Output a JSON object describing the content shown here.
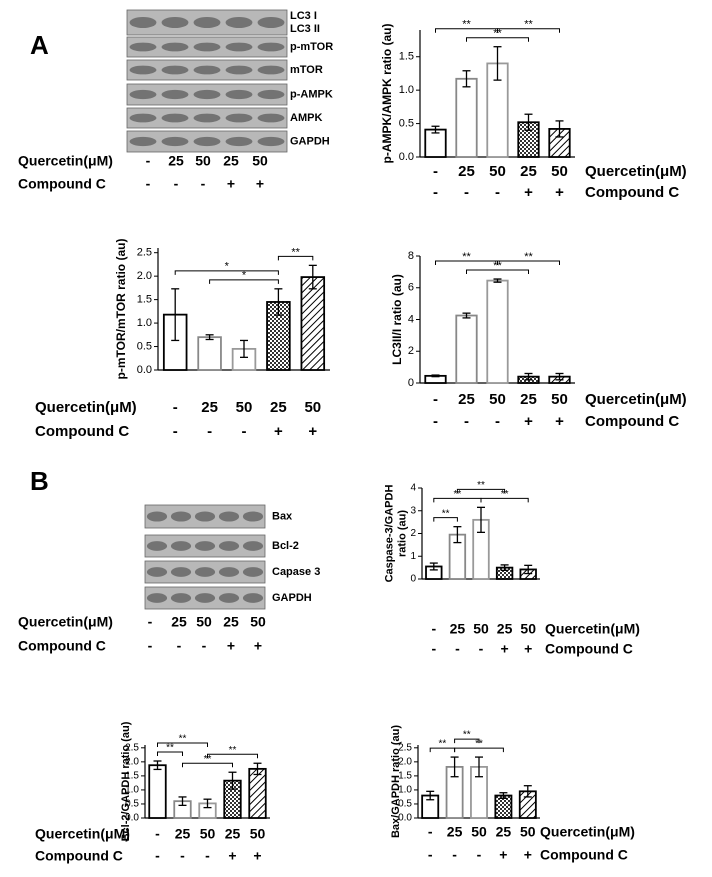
{
  "panel_labels": [
    "A",
    "B"
  ],
  "blots": [
    {
      "labels": [
        "LC3 I",
        "LC3 II",
        "p-mTOR",
        "mTOR",
        "p-AMPK",
        "AMPK",
        "GAPDH"
      ],
      "rows": [
        {
          "label": "Quercetin(μM)",
          "values": [
            "-",
            "25",
            "50",
            "25",
            "50"
          ]
        },
        {
          "label": "Compound C",
          "values": [
            "-",
            "-",
            "-",
            "+",
            "+"
          ]
        }
      ]
    },
    {
      "labels": [
        "Bax",
        "Bcl-2",
        "Capase 3",
        "GAPDH"
      ],
      "rows": [
        {
          "label": "Quercetin(μM)",
          "values": [
            "-",
            "25",
            "50",
            "25",
            "50"
          ]
        },
        {
          "label": "Compound C",
          "values": [
            "-",
            "-",
            "-",
            "+",
            "+"
          ]
        }
      ]
    }
  ],
  "chart_data": [
    {
      "type": "bar",
      "ylabel": [
        "p-AMPK/AMPK ratio (au)"
      ],
      "ylim": [
        0,
        1.9
      ],
      "yticks": [
        {
          "value": 0,
          "label": "0.0"
        },
        {
          "value": 0.5,
          "label": "0.5"
        },
        {
          "value": 1,
          "label": "1.0"
        },
        {
          "value": 1.5,
          "label": "1.5"
        }
      ],
      "values": [
        0.41,
        1.17,
        1.4,
        0.52,
        0.42
      ],
      "errors": [
        0.05,
        0.12,
        0.25,
        0.12,
        0.12
      ],
      "fills": [
        "#ffffff",
        "#ffffff",
        "#ffffff",
        "checker",
        "hatch"
      ],
      "edges": [
        "#000000",
        "#888888",
        "#999999",
        "#000000",
        "#000000"
      ],
      "rows": [
        {
          "label": "Quercetin(μM)",
          "values": [
            "-",
            "25",
            "50",
            "25",
            "50"
          ]
        },
        {
          "label": "Compound C",
          "values": [
            "-",
            "-",
            "-",
            "+",
            "+"
          ]
        }
      ],
      "brackets": [
        {
          "between": [
            1,
            3
          ],
          "label": "**"
        },
        {
          "between": [
            0,
            2
          ],
          "label": "**"
        },
        {
          "between": [
            2,
            4
          ],
          "label": "**"
        }
      ]
    },
    {
      "type": "bar",
      "ylabel": [
        "p-mTOR/mTOR ratio (au)"
      ],
      "ylim": [
        0,
        2.6
      ],
      "yticks": [
        {
          "value": 0,
          "label": "0.0"
        },
        {
          "value": 0.5,
          "label": "0.5"
        },
        {
          "value": 1,
          "label": "1.0"
        },
        {
          "value": 1.5,
          "label": "1.5"
        },
        {
          "value": 2,
          "label": "2.0"
        },
        {
          "value": 2.5,
          "label": "2.5"
        }
      ],
      "values": [
        1.18,
        0.7,
        0.45,
        1.45,
        1.98
      ],
      "errors": [
        0.55,
        0.05,
        0.18,
        0.28,
        0.25
      ],
      "fills": [
        "#ffffff",
        "#ffffff",
        "#ffffff",
        "checker",
        "hatch"
      ],
      "edges": [
        "#000000",
        "#888888",
        "#999999",
        "#000000",
        "#000000"
      ],
      "rows": [
        {
          "label": "Quercetin(μM)",
          "values": [
            "-",
            "25",
            "50",
            "25",
            "50"
          ]
        },
        {
          "label": "Compound C",
          "values": [
            "-",
            "-",
            "-",
            "+",
            "+"
          ]
        }
      ],
      "brackets": [
        {
          "between": [
            1,
            3
          ],
          "label": "*"
        },
        {
          "between": [
            0,
            3
          ],
          "label": "*"
        },
        {
          "between": [
            3,
            4
          ],
          "label": "**"
        }
      ]
    },
    {
      "type": "bar",
      "ylabel": [
        "LC3II/I ratio (au)"
      ],
      "ylim": [
        0,
        8
      ],
      "yticks": [
        0,
        2,
        4,
        6,
        8
      ],
      "values": [
        0.45,
        4.25,
        6.45,
        0.4,
        0.4
      ],
      "errors": [
        0.05,
        0.15,
        0.1,
        0.2,
        0.2
      ],
      "fills": [
        "#ffffff",
        "#ffffff",
        "#ffffff",
        "checker",
        "hatch"
      ],
      "edges": [
        "#000000",
        "#888888",
        "#999999",
        "#000000",
        "#000000"
      ],
      "rows": [
        {
          "label": "Quercetin(μM)",
          "values": [
            "-",
            "25",
            "50",
            "25",
            "50"
          ]
        },
        {
          "label": "Compound C",
          "values": [
            "-",
            "-",
            "-",
            "+",
            "+"
          ]
        }
      ],
      "brackets": [
        {
          "between": [
            1,
            3
          ],
          "label": "**"
        },
        {
          "between": [
            0,
            2
          ],
          "label": "**"
        },
        {
          "between": [
            2,
            4
          ],
          "label": "**"
        }
      ]
    },
    {
      "type": "bar",
      "ylabel": [
        "Caspase-3/GAPDH",
        "ratio (au)"
      ],
      "ylim": [
        0,
        4
      ],
      "yticks": [
        0,
        1,
        2,
        3,
        4
      ],
      "values": [
        0.55,
        1.95,
        2.6,
        0.5,
        0.42
      ],
      "errors": [
        0.15,
        0.35,
        0.55,
        0.12,
        0.18
      ],
      "fills": [
        "#ffffff",
        "#ffffff",
        "#ffffff",
        "checker",
        "hatch"
      ],
      "edges": [
        "#000000",
        "#888888",
        "#999999",
        "#000000",
        "#000000"
      ],
      "rows": [
        {
          "label": "Quercetin(μM)",
          "values": [
            "-",
            "25",
            "50",
            "25",
            "50"
          ]
        },
        {
          "label": "Compound C",
          "values": [
            "-",
            "-",
            "-",
            "+",
            "+"
          ]
        }
      ],
      "brackets": [
        {
          "between": [
            0,
            1
          ],
          "label": "**"
        },
        {
          "between": [
            0,
            2
          ],
          "label": "**"
        },
        {
          "between": [
            2,
            4
          ],
          "label": "**"
        },
        {
          "between": [
            1,
            3
          ],
          "label": "**"
        }
      ]
    },
    {
      "type": "bar",
      "ylabel": [
        "Bcl-2/GAPDH ratio (au)"
      ],
      "ylim": [
        0,
        2.6
      ],
      "yticks": [
        {
          "value": 0,
          "label": "0.0"
        },
        {
          "value": 0.5,
          "label": "0.5"
        },
        {
          "value": 1,
          "label": "1.0"
        },
        {
          "value": 1.5,
          "label": "1.5"
        },
        {
          "value": 2,
          "label": "2.0"
        },
        {
          "value": 2.5,
          "label": "2.5"
        }
      ],
      "values": [
        1.88,
        0.6,
        0.52,
        1.33,
        1.75
      ],
      "errors": [
        0.15,
        0.15,
        0.15,
        0.3,
        0.2
      ],
      "fills": [
        "#ffffff",
        "#ffffff",
        "#ffffff",
        "checker",
        "hatch"
      ],
      "edges": [
        "#000000",
        "#888888",
        "#999999",
        "#000000",
        "#000000"
      ],
      "rows": [
        {
          "label": "Quercetin(μM)",
          "values": [
            "-",
            "25",
            "50",
            "25",
            "50"
          ]
        },
        {
          "label": "Compound C",
          "values": [
            "-",
            "-",
            "-",
            "+",
            "+"
          ]
        }
      ],
      "brackets": [
        {
          "between": [
            0,
            1
          ],
          "label": "**"
        },
        {
          "between": [
            1,
            3
          ],
          "label": "**"
        },
        {
          "between": [
            0,
            2
          ],
          "label": "**"
        },
        {
          "between": [
            2,
            4
          ],
          "label": "**"
        }
      ]
    },
    {
      "type": "bar",
      "ylabel": [
        "Bax/GAPDH ratio (au)"
      ],
      "ylim": [
        0,
        2.6
      ],
      "yticks": [
        {
          "value": 0,
          "label": "0.0"
        },
        {
          "value": 0.5,
          "label": "0.5"
        },
        {
          "value": 1,
          "label": "1.0"
        },
        {
          "value": 1.5,
          "label": "1.5"
        },
        {
          "value": 2,
          "label": "2.0"
        },
        {
          "value": 2.5,
          "label": "2.5"
        }
      ],
      "values": [
        0.8,
        1.82,
        1.82,
        0.8,
        0.95
      ],
      "errors": [
        0.15,
        0.35,
        0.35,
        0.1,
        0.2
      ],
      "fills": [
        "#ffffff",
        "#ffffff",
        "#ffffff",
        "checker",
        "hatch"
      ],
      "edges": [
        "#000000",
        "#888888",
        "#999999",
        "#000000",
        "#000000"
      ],
      "rows": [
        {
          "label": "Quercetin(μM)",
          "values": [
            "-",
            "25",
            "50",
            "25",
            "50"
          ]
        },
        {
          "label": "Compound C",
          "values": [
            "-",
            "-",
            "-",
            "+",
            "+"
          ]
        }
      ],
      "brackets": [
        {
          "between": [
            1,
            3
          ],
          "label": "**"
        },
        {
          "between": [
            0,
            1
          ],
          "label": "**"
        },
        {
          "between": [
            1,
            2
          ],
          "label": "**"
        }
      ]
    }
  ]
}
